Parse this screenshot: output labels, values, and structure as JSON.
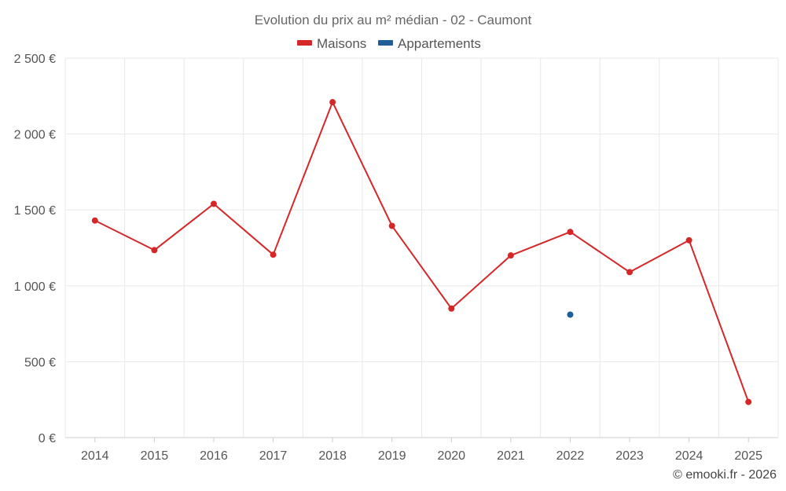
{
  "chart_data": {
    "type": "line",
    "title": "Evolution du prix au m² médian - 02 - Caumont",
    "categories": [
      "2014",
      "2015",
      "2016",
      "2017",
      "2018",
      "2019",
      "2020",
      "2021",
      "2022",
      "2023",
      "2024",
      "2025"
    ],
    "series": [
      {
        "name": "Maisons",
        "color": "#d62728",
        "values": [
          1430,
          1235,
          1540,
          1205,
          2210,
          1395,
          850,
          1200,
          1355,
          1090,
          1300,
          235
        ]
      },
      {
        "name": "Appartements",
        "color": "#1f5f99",
        "values": [
          null,
          null,
          null,
          null,
          null,
          null,
          null,
          null,
          810,
          null,
          null,
          null
        ]
      }
    ],
    "ylim": [
      0,
      2500
    ],
    "yticks": [
      0,
      500,
      1000,
      1500,
      2000,
      2500
    ],
    "ytick_labels": [
      "0 €",
      "500 €",
      "1 000 €",
      "1 500 €",
      "2 000 €",
      "2 500 €"
    ],
    "grid": true,
    "legend_position": "top-center"
  },
  "credit": "© emooki.fr - 2026"
}
